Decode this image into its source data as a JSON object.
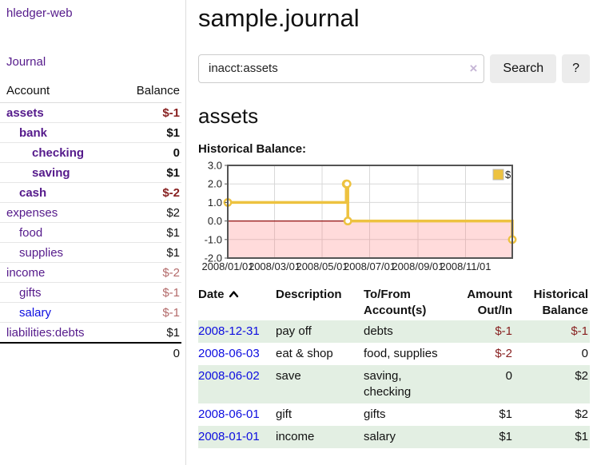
{
  "app": {
    "title": "hledger-web"
  },
  "sidebar": {
    "journal_link": "Journal",
    "accounts_table": {
      "headers": {
        "account": "Account",
        "balance": "Balance"
      },
      "rows": [
        {
          "name": "assets",
          "balance": "$-1",
          "indent": 0,
          "bold": true,
          "name_color": "purple",
          "balance_color": "neg-strong"
        },
        {
          "name": "bank",
          "balance": "$1",
          "indent": 1,
          "bold": true,
          "name_color": "purple",
          "balance_color": "plain"
        },
        {
          "name": "checking",
          "balance": "0",
          "indent": 2,
          "bold": true,
          "name_color": "purple",
          "balance_color": "plain"
        },
        {
          "name": "saving",
          "balance": "$1",
          "indent": 2,
          "bold": true,
          "name_color": "purple",
          "balance_color": "plain"
        },
        {
          "name": "cash",
          "balance": "$-2",
          "indent": 1,
          "bold": true,
          "name_color": "purple",
          "balance_color": "neg-strong"
        },
        {
          "name": "expenses",
          "balance": "$2",
          "indent": 0,
          "bold": false,
          "name_color": "purple",
          "balance_color": "plain"
        },
        {
          "name": "food",
          "balance": "$1",
          "indent": 1,
          "bold": false,
          "name_color": "purple",
          "balance_color": "plain"
        },
        {
          "name": "supplies",
          "balance": "$1",
          "indent": 1,
          "bold": false,
          "name_color": "purple",
          "balance_color": "plain"
        },
        {
          "name": "income",
          "balance": "$-2",
          "indent": 0,
          "bold": false,
          "name_color": "purple",
          "balance_color": "neg-muted"
        },
        {
          "name": "gifts",
          "balance": "$-1",
          "indent": 1,
          "bold": false,
          "name_color": "purple",
          "balance_color": "neg-muted"
        },
        {
          "name": "salary",
          "balance": "$-1",
          "indent": 1,
          "bold": false,
          "name_color": "blue",
          "balance_color": "neg-muted"
        },
        {
          "name": "liabilities:debts",
          "balance": "$1",
          "indent": 0,
          "bold": false,
          "name_color": "purple",
          "balance_color": "plain"
        }
      ],
      "total": "0"
    }
  },
  "main": {
    "title": "sample.journal",
    "search": {
      "value": "inacct:assets",
      "clear_icon": "×",
      "button_label": "Search",
      "help_label": "?"
    },
    "account_heading": "assets",
    "chart_label": "Historical Balance:",
    "register_table": {
      "headers": [
        "Date",
        "Description",
        "To/From Account(s)",
        "Amount Out/In",
        "Historical Balance"
      ],
      "rows": [
        {
          "date": "2008-12-31",
          "description": "pay off",
          "accounts": "debts",
          "amount": "$-1",
          "amount_neg": true,
          "balance": "$-1",
          "balance_neg": true
        },
        {
          "date": "2008-06-03",
          "description": "eat & shop",
          "accounts": "food, supplies",
          "amount": "$-2",
          "amount_neg": true,
          "balance": "0",
          "balance_neg": false
        },
        {
          "date": "2008-06-02",
          "description": "save",
          "accounts": "saving, checking",
          "amount": "0",
          "amount_neg": false,
          "balance": "$2",
          "balance_neg": false
        },
        {
          "date": "2008-06-01",
          "description": "gift",
          "accounts": "gifts",
          "amount": "$1",
          "amount_neg": false,
          "balance": "$2",
          "balance_neg": false
        },
        {
          "date": "2008-01-01",
          "description": "income",
          "accounts": "salary",
          "amount": "$1",
          "amount_neg": false,
          "balance": "$1",
          "balance_neg": false
        }
      ]
    }
  },
  "chart_data": {
    "type": "line",
    "style": "steps",
    "title": "Historical Balance:",
    "legend_position": "top-right",
    "x_range": [
      "2008-01-01",
      "2008-12-31"
    ],
    "ylim": [
      -2,
      3
    ],
    "grid": true,
    "negative_region_shaded": true,
    "colors": {
      "series": "#edc240",
      "zero_line": "#800000",
      "negative_fill": "rgba(255,110,110,0.25)",
      "grid": "#d8d8d8",
      "border": "#545454"
    },
    "series": [
      {
        "name": "$",
        "color": "#edc240",
        "points": [
          {
            "date": "2008-01-01",
            "value": 1
          },
          {
            "date": "2008-06-01",
            "value": 2
          },
          {
            "date": "2008-06-02",
            "value": 2
          },
          {
            "date": "2008-06-03",
            "value": 0
          },
          {
            "date": "2008-12-31",
            "value": -1
          }
        ]
      }
    ],
    "x_ticks": [
      {
        "date": "2008-01-01",
        "label": "2008/01/01"
      },
      {
        "date": "2008-03-01",
        "label": "2008/03/01"
      },
      {
        "date": "2008-05-01",
        "label": "2008/05/01"
      },
      {
        "date": "2008-07-01",
        "label": "2008/07/01"
      },
      {
        "date": "2008-09-01",
        "label": "2008/09/01"
      },
      {
        "date": "2008-11-01",
        "label": "2008/11/01"
      }
    ],
    "y_ticks": [
      "3.0",
      "2.0",
      "1.0",
      "0.0",
      "-1.0",
      "-2.0"
    ]
  }
}
